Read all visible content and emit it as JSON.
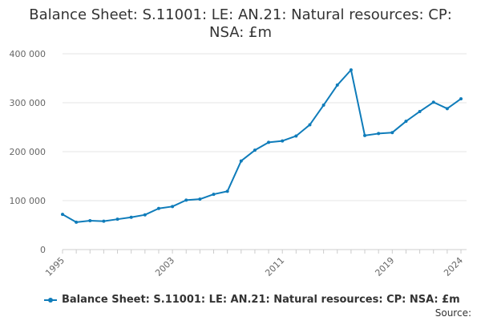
{
  "chart_data": {
    "type": "line",
    "title": "Balance Sheet: S.11001: LE: AN.21: Natural resources: CP: NSA: £m",
    "x": [
      1995,
      1996,
      1997,
      1998,
      1999,
      2000,
      2001,
      2002,
      2003,
      2004,
      2005,
      2006,
      2007,
      2008,
      2009,
      2010,
      2011,
      2012,
      2013,
      2014,
      2015,
      2016,
      2017,
      2018,
      2019,
      2020,
      2021,
      2022,
      2023,
      2024
    ],
    "series": [
      {
        "name": "Balance Sheet: S.11001: LE: AN.21: Natural resources: CP: NSA: £m",
        "color": "#0f7cba",
        "values": [
          72000,
          56000,
          59000,
          58000,
          62000,
          66000,
          71000,
          84000,
          88000,
          101000,
          103000,
          113000,
          119000,
          181000,
          203000,
          219000,
          222000,
          232000,
          255000,
          295000,
          336000,
          367000,
          233000,
          237000,
          239000,
          262000,
          282000,
          301000,
          288000,
          308000
        ]
      }
    ],
    "xticks": [
      "1995",
      "2003",
      "2011",
      "2019",
      "2024"
    ],
    "yticks": [
      "0",
      "100 000",
      "200 000",
      "300 000",
      "400 000"
    ],
    "ylim": [
      0,
      400000
    ],
    "xlim": [
      1995,
      2024
    ],
    "grid": true,
    "legend_position": "bottom"
  },
  "source_label": "Source:"
}
